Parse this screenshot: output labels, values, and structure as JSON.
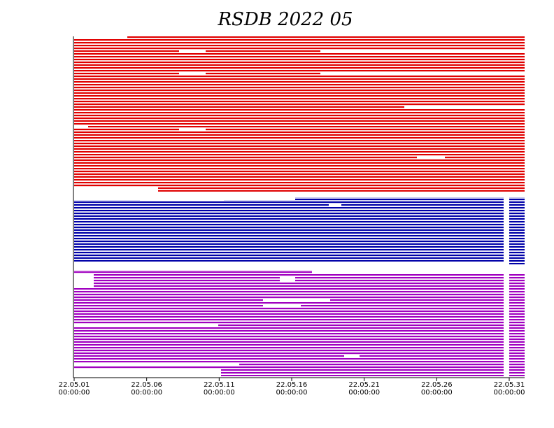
{
  "chart_data": {
    "type": "timeline",
    "title": "RSDB  2022  05",
    "categories": [
      "22.05.01",
      "22.05.06",
      "22.05.11",
      "22.05.16",
      "22.05.21",
      "22.05.26",
      "22.05.31"
    ],
    "category_times": [
      "00:00:00",
      "00:00:00",
      "00:00:00",
      "00:00:00",
      "00:00:00",
      "00:00:00",
      "00:00:00"
    ]
  }
}
